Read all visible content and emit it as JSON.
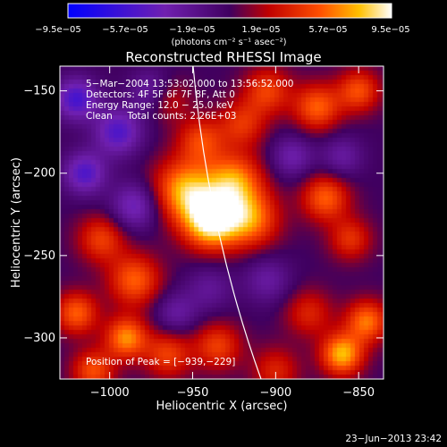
{
  "chart_data": {
    "type": "heatmap",
    "title": "Reconstructed RHESSI Image",
    "xlabel": "Heliocentric X (arcsec)",
    "ylabel": "Heliocentric Y (arcsec)",
    "xlim": [
      -1030,
      -835
    ],
    "ylim": [
      -325,
      -135
    ],
    "x_ticks": [
      "−1000",
      "−950",
      "−900",
      "−850"
    ],
    "x_tick_values": [
      -1000,
      -950,
      -900,
      -850
    ],
    "y_ticks": [
      "−150",
      "−200",
      "−250",
      "−300"
    ],
    "y_tick_values": [
      -150,
      -200,
      -250,
      -300
    ],
    "colorbar": {
      "ticks": [
        "−9.5e−05",
        "−5.7e−05",
        "−1.9e−05",
        "1.9e−05",
        "5.7e−05",
        "9.5e−05"
      ],
      "min": -9.5e-05,
      "max": 9.5e-05,
      "units": "(photons cm⁻² s⁻¹ asec⁻²)"
    },
    "annotations": [
      "5−Mar−2004 13:53:02.000 to 13:56:52.000",
      "Detectors: 4F 5F 6F 7F 8F, Att 0",
      "Energy Range: 12.0 − 25.0 keV",
      "Clean     Total counts: 2.26E+03"
    ],
    "peak_label": "Position of Peak = [−939,−229]",
    "timestamp": "23−Jun−2013 23:42",
    "sources": [
      {
        "x": -939,
        "y": -229,
        "amp": 9.5e-05,
        "s": 12
      },
      {
        "x": -955,
        "y": -210,
        "amp": 7e-05,
        "s": 13
      },
      {
        "x": -925,
        "y": -205,
        "amp": 6.5e-05,
        "s": 12
      },
      {
        "x": -915,
        "y": -228,
        "amp": 6e-05,
        "s": 12
      },
      {
        "x": -945,
        "y": -180,
        "amp": 4.5e-05,
        "s": 10
      },
      {
        "x": -920,
        "y": -170,
        "amp": 4e-05,
        "s": 10
      },
      {
        "x": -905,
        "y": -150,
        "amp": 4.5e-05,
        "s": 10
      },
      {
        "x": -875,
        "y": -160,
        "amp": 5.5e-05,
        "s": 10
      },
      {
        "x": -850,
        "y": -150,
        "amp": 5e-05,
        "s": 9
      },
      {
        "x": -870,
        "y": -215,
        "amp": 5.5e-05,
        "s": 10
      },
      {
        "x": -855,
        "y": -240,
        "amp": 4e-05,
        "s": 9
      },
      {
        "x": -985,
        "y": -265,
        "amp": 5.5e-05,
        "s": 11
      },
      {
        "x": -1005,
        "y": -240,
        "amp": 4.5e-05,
        "s": 10
      },
      {
        "x": -1020,
        "y": -285,
        "amp": 5.5e-05,
        "s": 9
      },
      {
        "x": -990,
        "y": -300,
        "amp": 6.5e-05,
        "s": 9
      },
      {
        "x": -1010,
        "y": -320,
        "amp": 5e-05,
        "s": 9
      },
      {
        "x": -965,
        "y": -310,
        "amp": 4.5e-05,
        "s": 10
      },
      {
        "x": -935,
        "y": -305,
        "amp": 4.5e-05,
        "s": 10
      },
      {
        "x": -880,
        "y": -285,
        "amp": 3.5e-05,
        "s": 10
      },
      {
        "x": -860,
        "y": -310,
        "amp": 7.5e-05,
        "s": 9
      },
      {
        "x": -845,
        "y": -290,
        "amp": 6e-05,
        "s": 9
      },
      {
        "x": -900,
        "y": -320,
        "amp": 3.5e-05,
        "s": 10
      },
      {
        "x": -965,
        "y": -155,
        "amp": 3e-05,
        "s": 9
      },
      {
        "x": -1020,
        "y": -155,
        "amp": -6e-05,
        "s": 9
      },
      {
        "x": -995,
        "y": -175,
        "amp": -5.5e-05,
        "s": 10
      },
      {
        "x": -1015,
        "y": -200,
        "amp": -5.5e-05,
        "s": 9
      },
      {
        "x": -985,
        "y": -220,
        "amp": -4.5e-05,
        "s": 10
      },
      {
        "x": -975,
        "y": -150,
        "amp": -3.5e-05,
        "s": 9
      },
      {
        "x": -890,
        "y": -190,
        "amp": -3.5e-05,
        "s": 9
      },
      {
        "x": -860,
        "y": -190,
        "amp": -3e-05,
        "s": 9
      },
      {
        "x": -905,
        "y": -265,
        "amp": -3e-05,
        "s": 10
      },
      {
        "x": -940,
        "y": -270,
        "amp": -2.5e-05,
        "s": 10
      },
      {
        "x": -960,
        "y": -285,
        "amp": -3e-05,
        "s": 9
      }
    ]
  }
}
